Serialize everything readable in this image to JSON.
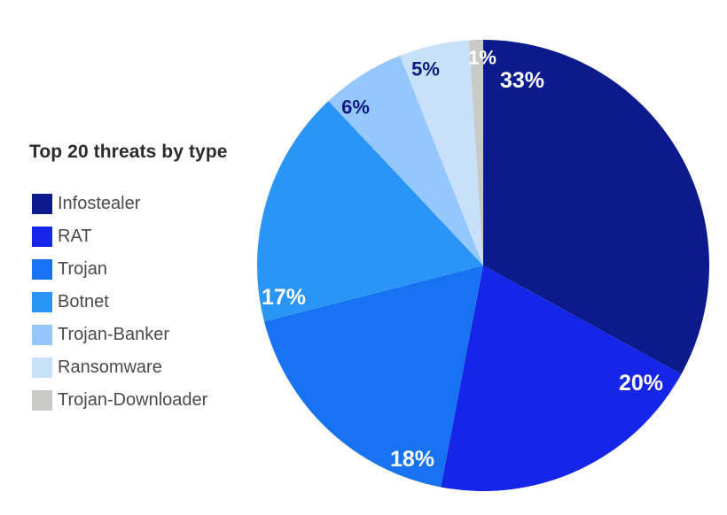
{
  "legend": {
    "title": "Top 20 threats by type"
  },
  "chart_data": {
    "type": "pie",
    "title": "Top 20 threats by type",
    "legend_position": "left",
    "start_angle_deg": 0,
    "direction": "clockwise",
    "geometry": {
      "center": [
        255,
        255
      ],
      "radius": 255
    },
    "slices": [
      {
        "label": "Infostealer",
        "value_pct": 33,
        "color": "#0B1B8C",
        "data_label": "33%",
        "label_color": "#ffffff",
        "label_pos": [
          299,
          46
        ],
        "label_size": 25
      },
      {
        "label": "RAT",
        "value_pct": 20,
        "color": "#1526E8",
        "data_label": "20%",
        "label_color": "#ffffff",
        "label_pos": [
          433,
          388
        ],
        "label_size": 25
      },
      {
        "label": "Trojan",
        "value_pct": 18,
        "color": "#1773F2",
        "data_label": "18%",
        "label_color": "#ffffff",
        "label_pos": [
          175,
          474
        ],
        "label_size": 25
      },
      {
        "label": "Botnet",
        "value_pct": 17,
        "color": "#2B95F7",
        "data_label": "17%",
        "label_color": "#ffffff",
        "label_pos": [
          30,
          291
        ],
        "label_size": 25
      },
      {
        "label": "Trojan-Banker",
        "value_pct": 6,
        "color": "#94C7FB",
        "data_label": "6%",
        "label_color": "#0D1B80",
        "label_pos": [
          111,
          76
        ],
        "label_size": 22
      },
      {
        "label": "Ransomware",
        "value_pct": 5,
        "color": "#C9E0FA",
        "data_label": "5%",
        "label_color": "#0D1B80",
        "label_pos": [
          190,
          33
        ],
        "label_size": 22
      },
      {
        "label": "Trojan-Downloader",
        "value_pct": 1,
        "color": "#C9C9C7",
        "data_label": "1%",
        "label_color": "#ffffff",
        "label_pos": [
          254,
          20
        ],
        "label_size": 22
      }
    ]
  }
}
